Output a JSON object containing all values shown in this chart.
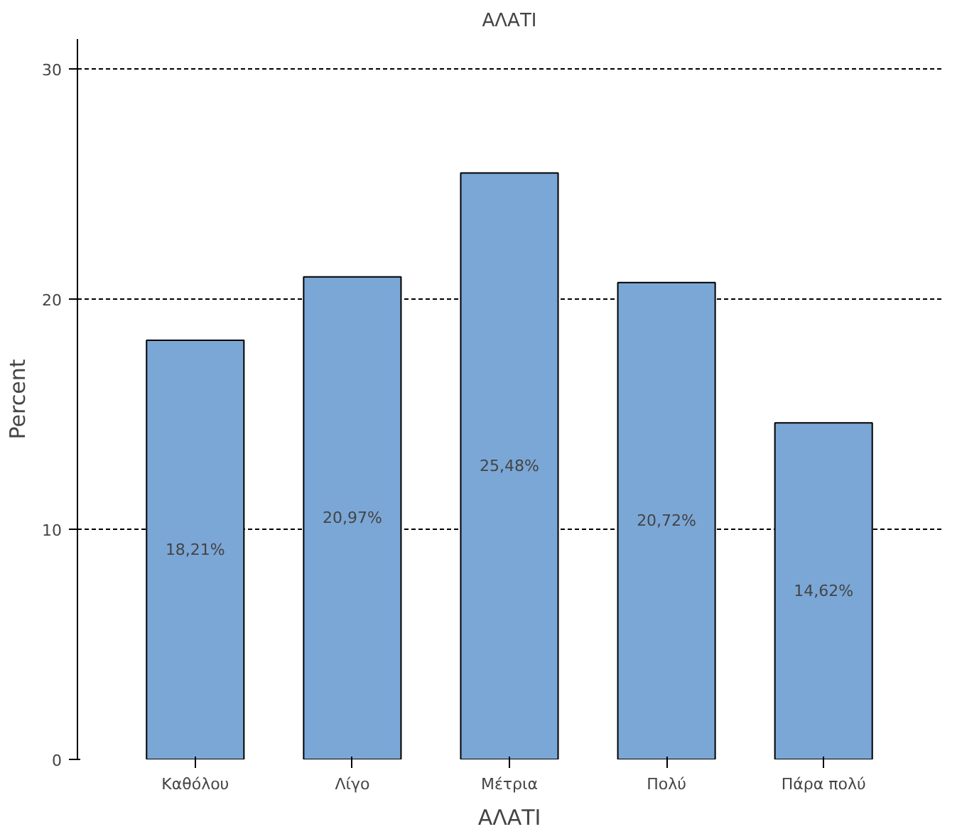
{
  "chart_data": {
    "type": "bar",
    "title": "ΑΛΑΤΙ",
    "xlabel": "ΑΛΑΤΙ",
    "ylabel": "Percent",
    "categories": [
      "Καθόλου",
      "Λίγο",
      "Μέτρια",
      "Πολύ",
      "Πάρα πολύ"
    ],
    "values": [
      18.21,
      20.97,
      25.48,
      20.72,
      14.62
    ],
    "value_labels": [
      "18,21%",
      "20,97%",
      "25,48%",
      "20,72%",
      "14,62%"
    ],
    "color": "#7ba7d7",
    "ylim": [
      0,
      31.3
    ],
    "yticks": [
      0,
      10,
      20,
      30
    ],
    "grid": "y"
  }
}
